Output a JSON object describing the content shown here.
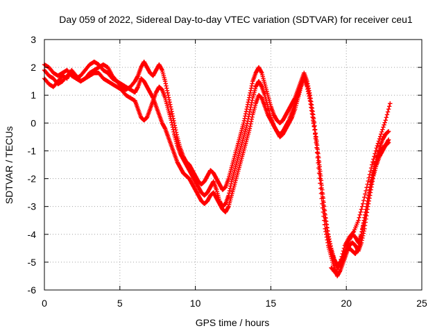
{
  "chart_data": {
    "type": "scatter",
    "title": "Day 059 of 2022, Sidereal Day-to-day VTEC variation (SDTVAR) for receiver ceu1",
    "xlabel": "GPS time / hours",
    "ylabel": "SDTVAR / TECUs",
    "xlim": [
      0,
      25
    ],
    "ylim": [
      -6,
      3
    ],
    "xticks": [
      0,
      5,
      10,
      15,
      20,
      25
    ],
    "yticks": [
      -6,
      -5,
      -4,
      -3,
      -2,
      -1,
      0,
      1,
      2,
      3
    ],
    "xtick_labels": [
      "0",
      "5",
      "10",
      "15",
      "20",
      "25"
    ],
    "ytick_labels": [
      "-6",
      "-5",
      "-4",
      "-3",
      "-2",
      "-1",
      "0",
      "1",
      "2",
      "3"
    ],
    "grid": true,
    "legend": "none",
    "marker": "+",
    "color": "#ff0000",
    "series": [
      {
        "x": [
          0.0,
          0.3,
          0.6,
          0.9,
          1.2,
          1.5,
          1.8,
          2.1,
          2.4,
          2.7,
          3.0,
          3.3,
          3.6,
          3.9,
          4.2,
          4.5,
          4.8,
          5.1,
          5.4,
          5.7,
          6.0,
          6.2,
          6.4,
          6.6,
          6.8,
          7.0,
          7.2,
          7.4,
          7.6,
          7.8,
          8.0,
          8.2,
          8.4,
          8.6,
          8.8,
          9.0,
          9.2,
          9.4,
          9.6,
          9.8,
          10.0,
          10.2,
          10.4,
          10.6,
          10.8,
          11.0,
          11.2,
          11.4,
          11.6,
          11.8,
          12.0,
          12.2,
          12.4,
          12.6,
          12.8,
          13.0,
          13.2,
          13.4,
          13.6,
          13.8,
          14.0,
          14.2,
          14.4,
          14.6,
          14.8,
          15.0,
          15.2,
          15.4,
          15.6,
          15.8,
          16.0,
          16.2,
          16.4,
          16.6,
          16.8,
          17.0,
          17.2,
          17.4,
          17.6,
          17.8,
          18.0,
          18.2,
          18.4,
          18.6,
          18.8,
          19.0,
          19.2,
          19.4,
          19.6,
          19.8,
          20.0,
          20.2,
          20.4,
          20.6,
          20.8,
          21.0,
          21.2,
          21.4,
          21.6,
          21.8,
          22.0,
          22.2,
          22.4,
          22.6,
          22.8
        ],
        "y": [
          1.6,
          1.4,
          1.3,
          1.5,
          1.7,
          1.6,
          1.9,
          1.7,
          1.5,
          1.6,
          1.8,
          1.9,
          2.0,
          2.1,
          2.0,
          1.7,
          1.5,
          1.4,
          1.3,
          1.2,
          1.1,
          1.3,
          1.6,
          1.5,
          1.3,
          1.1,
          0.9,
          0.6,
          0.3,
          0.0,
          -0.2,
          -0.5,
          -0.8,
          -1.1,
          -1.4,
          -1.6,
          -1.8,
          -1.9,
          -2.0,
          -2.2,
          -2.4,
          -2.6,
          -2.8,
          -2.9,
          -2.8,
          -2.6,
          -2.5,
          -2.7,
          -2.9,
          -3.1,
          -3.2,
          -3.0,
          -2.6,
          -2.2,
          -1.8,
          -1.4,
          -1.0,
          -0.6,
          -0.2,
          0.3,
          0.7,
          1.0,
          0.9,
          0.6,
          0.3,
          0.1,
          -0.1,
          -0.3,
          -0.5,
          -0.4,
          -0.2,
          0.0,
          0.2,
          0.5,
          0.9,
          1.3,
          1.6,
          1.3,
          0.8,
          0.1,
          -0.6,
          -1.5,
          -2.5,
          -3.4,
          -4.1,
          -4.6,
          -4.9,
          -5.1,
          -5.0,
          -4.8,
          -4.6,
          -4.5,
          -4.6,
          -4.7,
          -4.5,
          -4.0,
          -3.4,
          -2.8,
          -2.2,
          -1.7,
          -1.3,
          -1.0,
          -0.9,
          -0.8,
          -0.7
        ]
      },
      {
        "x": [
          0.0,
          0.3,
          0.6,
          0.9,
          1.2,
          1.5,
          1.8,
          2.1,
          2.4,
          2.7,
          3.0,
          3.3,
          3.6,
          3.9,
          4.2,
          4.5,
          4.8,
          5.1,
          5.4,
          5.7,
          6.0,
          6.2,
          6.4,
          6.6,
          6.8,
          7.0,
          7.2,
          7.4,
          7.6,
          7.8,
          8.0,
          8.2,
          8.4,
          8.6,
          8.8,
          9.0,
          9.2,
          9.4,
          9.6,
          9.8,
          10.0,
          10.2,
          10.4,
          10.6,
          10.8,
          11.0,
          11.2,
          11.4,
          11.6,
          11.8,
          12.0,
          12.2,
          12.4,
          12.6,
          12.8,
          13.0,
          13.2,
          13.4,
          13.6,
          13.8,
          14.0,
          14.2,
          14.4,
          14.6,
          14.8,
          15.0,
          15.2,
          15.4,
          15.6,
          15.8,
          16.0,
          16.2,
          16.4,
          16.6,
          16.8,
          17.0,
          17.2,
          17.4,
          17.6,
          17.8,
          18.0,
          18.2,
          18.4,
          18.6,
          18.8,
          19.0,
          19.2,
          19.4,
          19.6,
          19.8,
          20.0,
          20.2,
          20.4,
          20.6,
          20.8,
          21.0,
          21.2,
          21.4,
          21.6,
          21.8,
          22.0,
          22.2,
          22.4,
          22.6,
          22.8
        ],
        "y": [
          2.1,
          2.0,
          1.8,
          1.7,
          1.8,
          1.9,
          1.7,
          1.6,
          1.7,
          1.9,
          2.1,
          2.2,
          2.1,
          1.9,
          1.8,
          1.6,
          1.5,
          1.3,
          1.2,
          1.3,
          1.5,
          1.7,
          2.0,
          2.2,
          2.0,
          1.8,
          1.7,
          1.9,
          2.1,
          1.9,
          1.5,
          1.0,
          0.5,
          0.0,
          -0.5,
          -0.9,
          -1.2,
          -1.4,
          -1.5,
          -1.7,
          -1.9,
          -2.1,
          -2.2,
          -2.1,
          -1.9,
          -1.7,
          -1.8,
          -2.0,
          -2.2,
          -2.4,
          -2.3,
          -2.0,
          -1.6,
          -1.2,
          -0.8,
          -0.4,
          0.0,
          0.5,
          1.0,
          1.5,
          1.8,
          2.0,
          1.8,
          1.4,
          1.0,
          0.6,
          0.3,
          0.1,
          0.0,
          0.1,
          0.3,
          0.5,
          0.7,
          0.9,
          1.2,
          1.5,
          1.8,
          1.5,
          1.0,
          0.3,
          -0.5,
          -1.4,
          -2.4,
          -3.3,
          -4.0,
          -4.5,
          -4.9,
          -5.2,
          -5.1,
          -4.8,
          -4.5,
          -4.2,
          -4.0,
          -4.1,
          -4.3,
          -4.0,
          -3.5,
          -2.9,
          -2.3,
          -1.8,
          -1.3,
          -0.9,
          -0.6,
          -0.4,
          -0.3
        ]
      },
      {
        "x": [
          0.0,
          0.3,
          0.6,
          0.9,
          1.2,
          1.5,
          1.8,
          2.1,
          2.4,
          2.7,
          3.0,
          3.3,
          3.6,
          3.9,
          4.2,
          4.5,
          4.8,
          5.1,
          5.4,
          5.7,
          6.0,
          6.2,
          6.4,
          6.6,
          6.8,
          7.0,
          7.2,
          7.4,
          7.6,
          7.8,
          8.0,
          8.2,
          8.4,
          8.6,
          8.8,
          9.0,
          9.2,
          9.4,
          9.6,
          9.8,
          10.0,
          10.2,
          10.4,
          10.6,
          10.8,
          11.0,
          11.2,
          11.4,
          11.6,
          11.8,
          12.0,
          12.2,
          12.4,
          12.6,
          12.8,
          13.0,
          13.2,
          13.4,
          13.6,
          13.8,
          14.0,
          14.2,
          14.4,
          14.6,
          14.8,
          15.0,
          15.2,
          15.4,
          15.6,
          15.8,
          16.0,
          16.2,
          16.4,
          16.6,
          16.8,
          17.0,
          17.2,
          17.4,
          17.6,
          17.8,
          18.0,
          18.2,
          18.4,
          18.6,
          18.8,
          19.0,
          19.2,
          19.4,
          19.6,
          19.8,
          20.0,
          20.2,
          20.4,
          20.6,
          20.8,
          21.0,
          21.2,
          21.4,
          21.6,
          21.8,
          22.0,
          22.2,
          22.4,
          22.6,
          22.8
        ],
        "y": [
          1.9,
          1.7,
          1.6,
          1.4,
          1.5,
          1.7,
          1.8,
          1.6,
          1.5,
          1.6,
          1.7,
          1.8,
          1.8,
          1.6,
          1.5,
          1.4,
          1.3,
          1.2,
          1.0,
          0.9,
          0.8,
          0.5,
          0.2,
          0.1,
          0.2,
          0.5,
          0.8,
          1.1,
          1.3,
          1.2,
          0.9,
          0.5,
          0.1,
          -0.4,
          -0.8,
          -1.1,
          -1.3,
          -1.5,
          -1.7,
          -1.9,
          -2.1,
          -2.3,
          -2.5,
          -2.6,
          -2.5,
          -2.3,
          -2.1,
          -2.4,
          -2.8,
          -3.0,
          -2.9,
          -2.6,
          -2.1,
          -1.7,
          -1.3,
          -0.9,
          -0.5,
          -0.1,
          0.4,
          0.9,
          1.3,
          1.5,
          1.3,
          1.0,
          0.6,
          0.2,
          -0.1,
          -0.3,
          -0.4,
          -0.3,
          -0.1,
          0.1,
          0.4,
          0.7,
          1.0,
          1.4,
          1.7,
          1.4,
          0.9,
          0.2,
          -0.7,
          -1.8,
          -2.9,
          -3.8,
          -4.4,
          -4.8,
          -5.2,
          -5.5,
          -5.3,
          -5.0,
          -4.7,
          -4.4,
          -4.3,
          -4.4,
          -4.6,
          -4.3,
          -3.8,
          -3.1,
          -2.5,
          -1.9,
          -1.5,
          -1.2,
          -1.0,
          -0.8,
          -0.6
        ]
      },
      {
        "x": [
          19.0,
          19.3,
          19.6,
          19.9,
          20.2,
          20.5,
          20.8,
          21.1,
          21.4,
          21.7,
          22.0,
          22.3,
          22.6,
          22.9
        ],
        "y": [
          -5.2,
          -5.4,
          -5.0,
          -4.4,
          -4.1,
          -3.9,
          -3.5,
          -2.9,
          -2.2,
          -1.5,
          -0.9,
          -0.4,
          0.1,
          0.7
        ]
      }
    ]
  }
}
